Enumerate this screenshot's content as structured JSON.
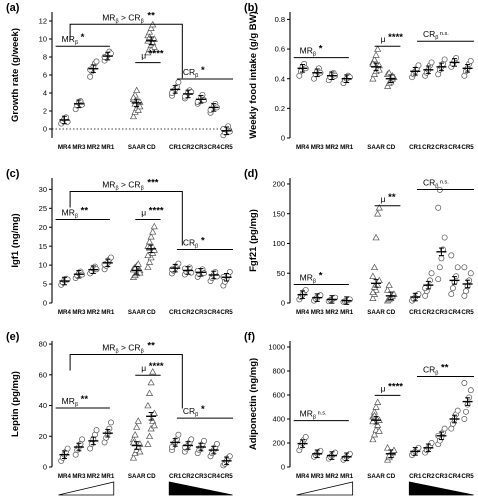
{
  "chart_data": [
    {
      "type": "scatter",
      "panel": "(a)",
      "ylabel": "Growth rate (g/week)",
      "ylim": [
        -1,
        13
      ],
      "yticks": [
        0,
        2,
        4,
        6,
        8,
        10,
        12
      ],
      "zero_line": true,
      "categories": [
        "MR4",
        "MR3",
        "MR2",
        "MR1",
        "SAAR",
        "CD",
        "CR1",
        "CR2",
        "CR3",
        "CR4",
        "CR5"
      ],
      "means": [
        1.0,
        2.8,
        6.7,
        8.1,
        2.9,
        9.8,
        4.4,
        3.9,
        3.3,
        2.4,
        -0.2
      ],
      "points": [
        [
          0.6,
          0.9,
          1.1,
          1.3,
          0.8
        ],
        [
          2.2,
          2.6,
          2.9,
          3.1,
          2.7
        ],
        [
          5.8,
          6.4,
          6.9,
          7.3,
          7.5,
          6.6
        ],
        [
          7.6,
          7.9,
          8.2,
          8.6,
          8.4,
          8.0
        ],
        [
          1.4,
          1.9,
          2.3,
          2.7,
          3.0,
          3.3,
          3.8,
          4.3,
          2.1,
          2.5,
          3.5,
          2.8
        ],
        [
          8.5,
          8.9,
          9.3,
          9.6,
          10.0,
          10.4,
          10.8,
          11.2,
          11.6,
          9.1,
          9.8,
          10.2,
          8.8
        ],
        [
          3.7,
          4.1,
          4.4,
          4.7,
          5.2,
          4.0
        ],
        [
          3.4,
          3.7,
          4.0,
          4.3,
          4.1,
          3.6
        ],
        [
          2.8,
          3.1,
          3.4,
          3.8,
          3.2,
          3.0
        ],
        [
          1.8,
          2.2,
          2.5,
          2.8,
          2.4,
          2.1
        ],
        [
          -0.7,
          -0.4,
          -0.1,
          0.3,
          -0.3,
          0.0
        ]
      ],
      "annotations": [
        {
          "text": "MR",
          "sub": "β",
          "stars": "*"
        },
        {
          "text": "MR",
          "sub": "β",
          "mid": " > CR",
          "sub2": "β",
          "stars": "**"
        },
        {
          "text": "μ",
          "stars": "****"
        },
        {
          "text": "CR",
          "sub": "β",
          "stars": "*"
        }
      ]
    },
    {
      "type": "scatter",
      "panel": "(b)",
      "ylabel": "Weekly food intake (g/g BW)",
      "ylim": [
        0.0,
        0.85
      ],
      "yticks": [
        0.0,
        0.2,
        0.4,
        0.6,
        0.8
      ],
      "zero_line": false,
      "categories": [
        "MR4",
        "MR3",
        "MR2",
        "MR1",
        "SAAR",
        "CD",
        "CR1",
        "CR2",
        "CR3",
        "CR4",
        "CR5"
      ],
      "means": [
        0.47,
        0.44,
        0.42,
        0.4,
        0.48,
        0.4,
        0.45,
        0.46,
        0.48,
        0.51,
        0.47
      ],
      "points": [
        [
          0.42,
          0.45,
          0.48,
          0.5,
          0.47
        ],
        [
          0.4,
          0.43,
          0.45,
          0.47,
          0.44
        ],
        [
          0.39,
          0.41,
          0.43,
          0.44,
          0.42
        ],
        [
          0.37,
          0.39,
          0.4,
          0.42,
          0.41
        ],
        [
          0.4,
          0.43,
          0.45,
          0.47,
          0.49,
          0.51,
          0.53,
          0.56,
          0.6,
          0.46,
          0.5
        ],
        [
          0.35,
          0.37,
          0.39,
          0.4,
          0.41,
          0.43,
          0.44,
          0.38,
          0.42
        ],
        [
          0.41,
          0.43,
          0.45,
          0.47,
          0.49
        ],
        [
          0.42,
          0.44,
          0.46,
          0.49,
          0.51
        ],
        [
          0.43,
          0.46,
          0.48,
          0.5,
          0.53
        ],
        [
          0.48,
          0.5,
          0.52,
          0.54
        ],
        [
          0.42,
          0.45,
          0.47,
          0.5,
          0.52
        ]
      ],
      "annotations": [
        {
          "text": "MR",
          "sub": "β",
          "stars": "*"
        },
        {
          "text": "μ",
          "stars": "****"
        },
        {
          "text": "CR",
          "sub": "β",
          "stars": "n.s."
        }
      ]
    },
    {
      "type": "scatter",
      "panel": "(c)",
      "ylabel": "Igf1 (ng/mg)",
      "ylim": [
        0,
        33
      ],
      "yticks": [
        0,
        5,
        10,
        15,
        20,
        25,
        30
      ],
      "zero_line": false,
      "categories": [
        "MR4",
        "MR3",
        "MR2",
        "MR1",
        "SAAR",
        "CD",
        "CR1",
        "CR2",
        "CR3",
        "CR4",
        "CR5"
      ],
      "means": [
        5.8,
        7.6,
        8.8,
        10.6,
        8.6,
        14.3,
        9.2,
        8.6,
        8.1,
        7.4,
        6.8
      ],
      "points": [
        [
          4.8,
          5.4,
          6.0,
          6.4,
          6.2
        ],
        [
          6.6,
          7.2,
          7.8,
          8.3,
          7.5
        ],
        [
          7.8,
          8.4,
          9.1,
          9.6,
          8.9
        ],
        [
          8.9,
          9.8,
          10.6,
          11.5,
          12.0,
          10.2
        ],
        [
          6.8,
          7.3,
          7.8,
          8.2,
          8.6,
          9.0,
          9.4,
          9.8,
          10.3,
          8.0,
          8.8,
          9.2
        ],
        [
          9.5,
          10.8,
          12.0,
          13.2,
          14.0,
          15.0,
          16.2,
          17.5,
          18.8,
          20.2,
          12.6,
          14.6
        ],
        [
          7.8,
          8.5,
          9.2,
          9.8,
          10.4,
          8.9
        ],
        [
          7.5,
          8.2,
          8.8,
          9.4,
          8.0,
          9.1
        ],
        [
          6.9,
          7.6,
          8.3,
          8.9,
          7.9,
          8.5
        ],
        [
          5.8,
          6.6,
          7.4,
          8.2,
          7.0
        ],
        [
          4.6,
          5.6,
          6.4,
          7.3,
          8.2,
          6.9
        ]
      ],
      "annotations": [
        {
          "text": "MR",
          "sub": "β",
          "stars": "**"
        },
        {
          "text": "MR",
          "sub": "β",
          "mid": " > CR",
          "sub2": "β",
          "stars": "***"
        },
        {
          "text": "μ",
          "stars": "****"
        },
        {
          "text": "CR",
          "sub": "β",
          "stars": "*"
        }
      ]
    },
    {
      "type": "scatter",
      "panel": "(d)",
      "ylabel": "Fgf21 (pg/mg)",
      "ylim": [
        0,
        210
      ],
      "yticks": [
        0,
        50,
        100,
        150,
        200
      ],
      "zero_line": false,
      "categories": [
        "MR4",
        "MR3",
        "MR2",
        "MR1",
        "SAAR",
        "CD",
        "CR1",
        "CR2",
        "CR3",
        "CR4",
        "CR5"
      ],
      "means": [
        14,
        9,
        6,
        4,
        33,
        12,
        10,
        30,
        86,
        38,
        32
      ],
      "points": [
        [
          6,
          10,
          14,
          19,
          22
        ],
        [
          4,
          7,
          9,
          12,
          13
        ],
        [
          3,
          5,
          6,
          8,
          9
        ],
        [
          2,
          3,
          4,
          5,
          6
        ],
        [
          8,
          15,
          22,
          30,
          38,
          45,
          60,
          110,
          150,
          160,
          18,
          27
        ],
        [
          4,
          6,
          9,
          12,
          15,
          22,
          30,
          8
        ],
        [
          4,
          7,
          10,
          13,
          15
        ],
        [
          12,
          20,
          28,
          38,
          50,
          25
        ],
        [
          40,
          60,
          75,
          90,
          110,
          160,
          190
        ],
        [
          15,
          25,
          35,
          45,
          60,
          80
        ],
        [
          12,
          20,
          28,
          38,
          50,
          60
        ]
      ],
      "annotations": [
        {
          "text": "MR",
          "sub": "β",
          "stars": "*"
        },
        {
          "text": "μ",
          "stars": "**"
        },
        {
          "text": "CR",
          "sub": "β",
          "stars": "n.s."
        }
      ]
    },
    {
      "type": "scatter",
      "panel": "(e)",
      "ylabel": "Leptin (pg/mg)",
      "ylim": [
        0,
        82
      ],
      "yticks": [
        0,
        20,
        40,
        60,
        80
      ],
      "zero_line": false,
      "categories": [
        "MR4",
        "MR3",
        "MR2",
        "MR1",
        "SAAR",
        "CD",
        "CR1",
        "CR2",
        "CR3",
        "CR4",
        "CR5"
      ],
      "means": [
        8,
        13,
        17,
        22,
        14,
        33,
        16,
        14,
        13,
        11,
        4
      ],
      "points": [
        [
          4,
          6,
          8,
          10,
          12
        ],
        [
          8,
          11,
          13,
          15,
          18
        ],
        [
          12,
          15,
          18,
          21,
          24
        ],
        [
          16,
          19,
          22,
          25,
          29
        ],
        [
          6,
          9,
          11,
          13,
          15,
          18,
          21,
          26,
          30,
          10,
          16
        ],
        [
          15,
          20,
          25,
          30,
          35,
          40,
          48,
          55,
          62,
          27
        ],
        [
          11,
          14,
          16,
          18,
          21,
          13
        ],
        [
          10,
          12,
          14,
          16,
          18,
          13
        ],
        [
          9,
          11,
          13,
          15,
          17
        ],
        [
          7,
          9,
          11,
          13,
          15
        ],
        [
          1,
          2,
          4,
          6,
          7
        ]
      ],
      "annotations": [
        {
          "text": "MR",
          "sub": "β",
          "stars": "**"
        },
        {
          "text": "MR",
          "sub": "β",
          "mid": " > CR",
          "sub2": "β",
          "stars": "**"
        },
        {
          "text": "μ",
          "stars": "****"
        },
        {
          "text": "CR",
          "sub": "β",
          "stars": "*"
        }
      ]
    },
    {
      "type": "scatter",
      "panel": "(f)",
      "ylabel": "Adiponectin (ng/mg)",
      "ylim": [
        0,
        1050
      ],
      "yticks": [
        0,
        200,
        400,
        600,
        800,
        1000
      ],
      "zero_line": false,
      "categories": [
        "MR4",
        "MR3",
        "MR2",
        "MR1",
        "SAAR",
        "CD",
        "CR1",
        "CR2",
        "CR3",
        "CR4",
        "CR5"
      ],
      "means": [
        195,
        110,
        95,
        85,
        390,
        110,
        130,
        160,
        260,
        400,
        545
      ],
      "points": [
        [
          140,
          170,
          200,
          230,
          250
        ],
        [
          85,
          100,
          110,
          125,
          135
        ],
        [
          70,
          85,
          95,
          110,
          120
        ],
        [
          60,
          75,
          85,
          95,
          110
        ],
        [
          230,
          270,
          310,
          350,
          390,
          420,
          460,
          500,
          540,
          300,
          380,
          430
        ],
        [
          60,
          80,
          100,
          120,
          140,
          160,
          95
        ],
        [
          100,
          115,
          130,
          145,
          160
        ],
        [
          120,
          140,
          160,
          180,
          200
        ],
        [
          190,
          220,
          250,
          290,
          320,
          260
        ],
        [
          320,
          360,
          400,
          440,
          470
        ],
        [
          400,
          460,
          520,
          580,
          640,
          700
        ]
      ],
      "annotations": [
        {
          "text": "MR",
          "sub": "β",
          "stars": "n.s."
        },
        {
          "text": "μ",
          "stars": "****"
        },
        {
          "text": "CR",
          "sub": "β",
          "stars": "**"
        }
      ]
    }
  ]
}
